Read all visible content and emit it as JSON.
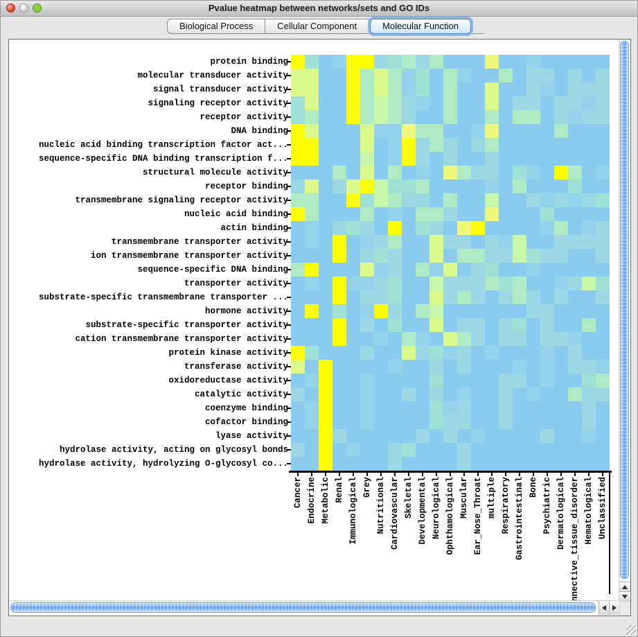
{
  "window": {
    "title": "Pvalue heatmap between networks/sets and GO IDs"
  },
  "traffic_lights": [
    {
      "name": "close-button",
      "color": "#e0453c"
    },
    {
      "name": "minimize-button",
      "color": "#d9d9d9"
    },
    {
      "name": "zoom-button",
      "color": "#8ed03f"
    }
  ],
  "tabs": [
    {
      "label": "Biological Process",
      "selected": false
    },
    {
      "label": "Cellular Component",
      "selected": false
    },
    {
      "label": "Molecular Function",
      "selected": true
    }
  ],
  "chart_data": {
    "type": "heatmap",
    "title": "Pvalue heatmap between networks/sets and GO IDs",
    "note": "Cell color encodes p-value: bright yellow = most significant, light blue = not significant",
    "legend_position": "none",
    "grid": false,
    "rows": [
      "protein binding",
      "molecular transducer activity",
      "signal transducer activity",
      "signaling receptor activity",
      "receptor activity",
      "DNA binding",
      "nucleic acid binding transcription factor act...",
      "sequence-specific DNA binding transcription f...",
      "structural molecule activity",
      "receptor binding",
      "transmembrane signaling receptor activity",
      "nucleic acid binding",
      "actin binding",
      "transmembrane transporter activity",
      "ion transmembrane transporter activity",
      "sequence-specific DNA binding",
      "transporter activity",
      "substrate-specific transmembrane transporter ...",
      "hormone activity",
      "substrate-specific transporter activity",
      "cation transmembrane transporter activity",
      "protein kinase activity",
      "transferase activity",
      "oxidoreductase activity",
      "catalytic activity",
      "coenzyme binding",
      "cofactor binding",
      "lyase activity",
      "hydrolase activity, acting on glycosyl bonds",
      "hydrolase activity, hydrolyzing O-glycosyl co..."
    ],
    "columns": [
      "Cancer",
      "Endocrine",
      "Metabolic",
      "Renal",
      "Immunological",
      "Grey",
      "Nutritional",
      "Cardiovascular",
      "Skeletal",
      "Developmental",
      "Neurological",
      "Ophthamological",
      "Muscular",
      "Ear_Nose_Throat",
      "multiple",
      "Respiratory",
      "Gastrointestinal",
      "Bone",
      "Psychiatric",
      "Dermatological",
      "Connective_tissue_disorder",
      "Hematological",
      "Unclassified"
    ],
    "palette": {
      "Y": "#ffff00",
      "x": "#edf87b",
      "y": "#dcfa8c",
      "m": "#c6f7a9",
      "g": "#aeeac3",
      "a": "#9fe1d4",
      "c": "#9cd8e3",
      "t": "#93d2ea",
      "b": "#8bcbf0"
    },
    "cells": [
      "YabtYYcagcgbbbxbbtbbbbb",
      "yybbYgygtabgtbbgbccbcbc",
      "yybbYgygtabgbbybbctbccc",
      "aybbYgmgctbgbbybccbcctc",
      "agbbYgmgcbbgbbgbggbctcc",
      "Yybbbyttxggbbtxbbbbgbbb",
      "YYbbbybtYcgcbcgbbbbbbbb",
      "YYbbbmbtYcbcbbcbbbbbbbb",
      "bbbgbybgbtbxgccbatbYgbt",
      "cybcyYmaagbbbbtbgbbbabb",
      "ggbbYamgccbgbbmbbctctca",
      "Ygbbbgbtbggcbbxbbbabbbb",
      "btbcacbYbacbxYbbbbtgbtc",
      "btbYbtcgbbyccbctmbbcccc",
      "bbbYbcacbbybggccmaccbbc",
      "gYbbbytcbgtybcabbtbbbbb",
      "btbYttcabbmcccgagbbtcma",
      "bbbYbccabbycgcbcgcbcbbc",
      "bYbabtYcbgmbbbbbbccbbbb",
      "bbbYbcbabbybccbcabcbbgb",
      "bbbYbbtbgtbygcbccbcctbb",
      "Yabbbcbbycatcbtbbbtbcbb",
      "ybYbbbbtbbcbcbbbtbtbcct",
      "btYbbtbbbbabbbbccbtbbag",
      "cbYbbtbbcbcbtbbcbtbbgcc",
      "btYbbtbbbbatcbbcbbbbbcb",
      "btYbbtbbbbaccbbcbbbbbcb",
      "bbYcbbbbbcbcbtbbbbcbbtb",
      "cbYbtbbcabbbcbbbbbbbbbb",
      "bbYbbbbcbbbbcbbbbbbbbbb"
    ]
  },
  "scrollbars": {
    "vertical": {
      "icons": [
        "scroll-up-icon",
        "scroll-down-icon"
      ]
    },
    "horizontal": {
      "icons": [
        "scroll-left-icon",
        "scroll-right-icon"
      ]
    }
  }
}
